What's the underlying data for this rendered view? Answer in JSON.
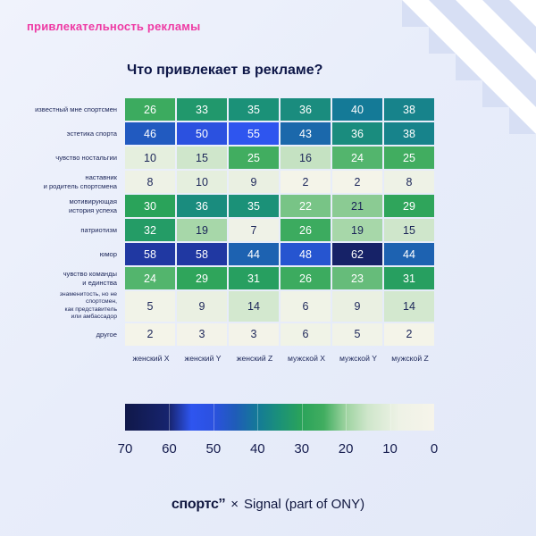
{
  "page": {
    "eyebrow": "привлекательность рекламы",
    "footer": {
      "brand": "спортс’’",
      "separator": "×",
      "partner": "Signal (part of ONY)"
    }
  },
  "chart_data": {
    "type": "heatmap",
    "title": "Что привлекает в рекламе?",
    "rows": [
      "известный мне спортсмен",
      "эстетика спорта",
      "чувство ностальгии",
      "наставник\nи родитель спортсмена",
      "мотивирующая\nистория успеха",
      "патриотизм",
      "юмор",
      "чувство команды\nи единства",
      "знаменитость, но не спортсмен,\nкак представитель\nили амбассадор",
      "другое"
    ],
    "columns": [
      "женский X",
      "женский Y",
      "женский Z",
      "мужской X",
      "мужской Y",
      "мужской Z"
    ],
    "values": [
      [
        26,
        33,
        35,
        36,
        40,
        38
      ],
      [
        46,
        50,
        55,
        43,
        36,
        38
      ],
      [
        10,
        15,
        25,
        16,
        24,
        25
      ],
      [
        8,
        10,
        9,
        2,
        2,
        8
      ],
      [
        30,
        36,
        35,
        22,
        21,
        29
      ],
      [
        32,
        19,
        7,
        26,
        19,
        15
      ],
      [
        58,
        58,
        44,
        48,
        62,
        44
      ],
      [
        24,
        29,
        31,
        26,
        23,
        31
      ],
      [
        5,
        9,
        14,
        6,
        9,
        14
      ],
      [
        2,
        3,
        3,
        6,
        5,
        2
      ]
    ],
    "colorbar": {
      "min": 0,
      "max": 70,
      "ticks": [
        70,
        60,
        50,
        40,
        30,
        20,
        10,
        0
      ]
    },
    "colormap_stops": [
      {
        "value": 0,
        "color": "#f6f4ea"
      },
      {
        "value": 8,
        "color": "#eef2e6"
      },
      {
        "value": 15,
        "color": "#cfe6cb"
      },
      {
        "value": 20,
        "color": "#9dd3a0"
      },
      {
        "value": 25,
        "color": "#41ad60"
      },
      {
        "value": 30,
        "color": "#2aa35a"
      },
      {
        "value": 35,
        "color": "#1b9178"
      },
      {
        "value": 40,
        "color": "#147a97"
      },
      {
        "value": 45,
        "color": "#1f5cb8"
      },
      {
        "value": 50,
        "color": "#2b51e0"
      },
      {
        "value": 55,
        "color": "#2e55ef"
      },
      {
        "value": 60,
        "color": "#17246f"
      },
      {
        "value": 70,
        "color": "#101849"
      }
    ]
  }
}
